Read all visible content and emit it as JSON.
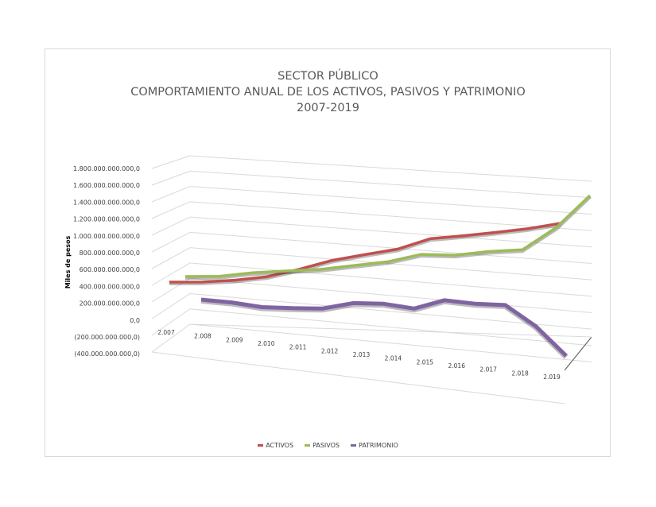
{
  "chart_data": {
    "type": "line",
    "title": [
      "SECTOR PÚBLICO",
      "COMPORTAMIENTO ANUAL DE LOS ACTIVOS, PASIVOS Y PATRIMONIO",
      "2007-2019"
    ],
    "ylabel": "Miles de pesos",
    "xlabel": "",
    "ylim": [
      -400000000000,
      1800000000000
    ],
    "yticks": [
      "1.800.000.000.000,0",
      "1.600.000.000.000,0",
      "1.400.000.000.000,0",
      "1.200.000.000.000,0",
      "1.000.000.000.000,0",
      "800.000.000.000,0",
      "600.000.000.000,0",
      "400.000.000.000,0",
      "200.000.000.000,0",
      "0,0",
      "(200.000.000.000,0)",
      "(400.000.000.000,0)"
    ],
    "categories": [
      "2.007",
      "2.008",
      "2.009",
      "2.010",
      "2.011",
      "2.012",
      "2.013",
      "2.014",
      "2.015",
      "2.016",
      "2.017",
      "2.018",
      "2.019"
    ],
    "series": [
      {
        "name": "ACTIVOS",
        "color": "#c0504d",
        "values": [
          430000000000,
          440000000000,
          470000000000,
          520000000000,
          620000000000,
          740000000000,
          830000000000,
          920000000000,
          1080000000000,
          1150000000000,
          1230000000000,
          1320000000000,
          1440000000000
        ]
      },
      {
        "name": "PASIVOS",
        "color": "#9bbb59",
        "values": [
          480000000000,
          490000000000,
          540000000000,
          570000000000,
          600000000000,
          660000000000,
          720000000000,
          830000000000,
          840000000000,
          910000000000,
          960000000000,
          1300000000000,
          1810000000000
        ]
      },
      {
        "name": "PATRIMONIO",
        "color": "#8064a2",
        "values": [
          -50000000000,
          -50000000000,
          -70000000000,
          -50000000000,
          -20000000000,
          80000000000,
          110000000000,
          90000000000,
          240000000000,
          240000000000,
          270000000000,
          20000000000,
          -370000000000
        ]
      }
    ],
    "legend": "bottom",
    "grid": true
  }
}
